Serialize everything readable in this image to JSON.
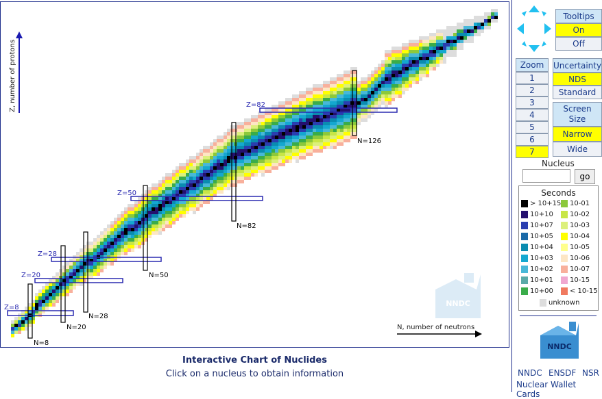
{
  "chart": {
    "y_axis_label": "Z, number of protons",
    "x_axis_label": "N, number of neutrons",
    "magic_labels": {
      "z": [
        "Z=8",
        "Z=20",
        "Z=28",
        "Z=50",
        "Z=82"
      ],
      "n": [
        "N=8",
        "N=20",
        "N=28",
        "N=50",
        "N=82",
        "N=126"
      ]
    },
    "watermark": "NNDC"
  },
  "footer": {
    "title": "Interactive Chart of Nuclides",
    "subtitle": "Click on a nucleus to obtain information"
  },
  "sidebar": {
    "tooltips": {
      "header": "Tooltips",
      "on": "On",
      "off": "Off",
      "selected": "On"
    },
    "zoom": {
      "header": "Zoom",
      "levels": [
        "1",
        "2",
        "3",
        "4",
        "5",
        "6",
        "7"
      ],
      "selected": "7"
    },
    "uncertainty": {
      "header": "Uncertainty",
      "options": [
        "NDS",
        "Standard"
      ],
      "selected": "NDS"
    },
    "screen_size": {
      "header": "Screen Size",
      "options": [
        "Narrow",
        "Wide"
      ],
      "selected": "Narrow"
    },
    "nucleus": {
      "label": "Nucleus",
      "value": "",
      "go_label": "go"
    },
    "legend": {
      "title": "Seconds",
      "left": [
        {
          "label": "> 10+15",
          "color": "#000000"
        },
        {
          "label": "10+10",
          "color": "#24106e"
        },
        {
          "label": "10+07",
          "color": "#2a3eb0"
        },
        {
          "label": "10+05",
          "color": "#1a6aa8"
        },
        {
          "label": "10+04",
          "color": "#0a8cb0"
        },
        {
          "label": "10+03",
          "color": "#14a8d0"
        },
        {
          "label": "10+02",
          "color": "#48b8d8"
        },
        {
          "label": "10+01",
          "color": "#5aaaa8"
        },
        {
          "label": "10+00",
          "color": "#3aac4a"
        }
      ],
      "right": [
        {
          "label": "10-01",
          "color": "#8cc83c"
        },
        {
          "label": "10-02",
          "color": "#c8e646"
        },
        {
          "label": "10-03",
          "color": "#dcf07c"
        },
        {
          "label": "10-04",
          "color": "#ffff00"
        },
        {
          "label": "10-05",
          "color": "#ffff8c"
        },
        {
          "label": "10-06",
          "color": "#fde6c4"
        },
        {
          "label": "10-07",
          "color": "#f8b09c"
        },
        {
          "label": "10-15",
          "color": "#f0a8d0"
        },
        {
          "label": "< 10-15",
          "color": "#f07a60"
        }
      ],
      "unknown": {
        "label": "unknown",
        "color": "#dddddd"
      }
    },
    "logo": "NNDC",
    "links": [
      "NNDC",
      "ENSDF",
      "NSR",
      "Nuclear Wallet Cards"
    ]
  }
}
